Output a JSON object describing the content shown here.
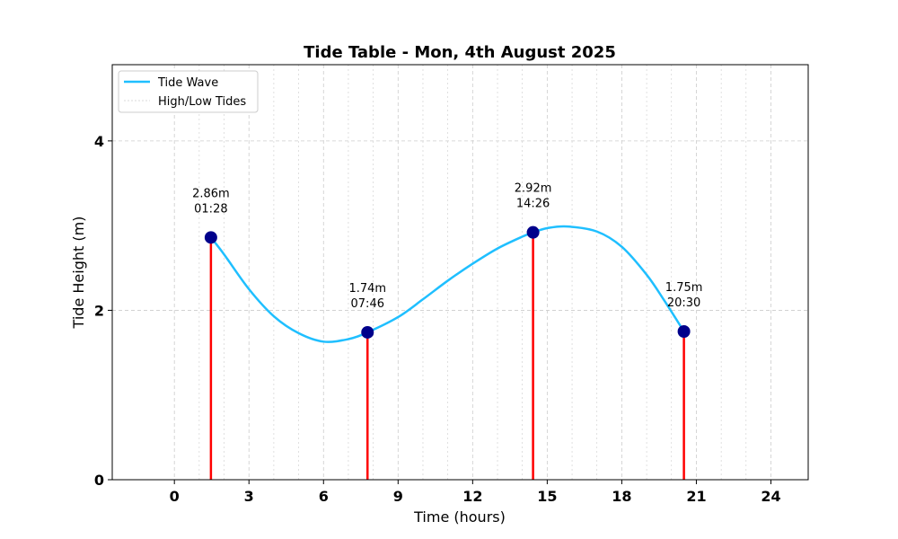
{
  "chart_data": {
    "type": "line",
    "title": "Tide Table - Mon, 4th August 2025",
    "xlabel": "Time (hours)",
    "ylabel": "Tide Height (m)",
    "xlim": [
      -2.5,
      25.5
    ],
    "ylim": [
      0,
      4.9
    ],
    "x_ticks": [
      0,
      3,
      6,
      9,
      12,
      15,
      18,
      21,
      24
    ],
    "y_ticks": [
      0,
      2,
      4
    ],
    "grid": true,
    "legend_position": "top-left",
    "legend": [
      "Tide Wave",
      "High/Low Tides"
    ],
    "colors": {
      "wave": "#1fbfff",
      "markers": "#00008b",
      "tide_lines": "#ff0000",
      "grid": "#cccccc"
    },
    "series": [
      {
        "name": "Tide Wave",
        "x": [
          1.47,
          2.0,
          3.0,
          4.0,
          5.0,
          6.0,
          7.0,
          7.77,
          9.0,
          10.0,
          11.0,
          12.0,
          13.0,
          14.0,
          14.43,
          15.0,
          15.8,
          17.0,
          18.0,
          19.0,
          19.7,
          20.5
        ],
        "y": [
          2.86,
          2.66,
          2.25,
          1.93,
          1.73,
          1.63,
          1.66,
          1.74,
          1.92,
          2.13,
          2.35,
          2.55,
          2.73,
          2.87,
          2.92,
          2.97,
          2.99,
          2.93,
          2.75,
          2.42,
          2.12,
          1.75
        ]
      }
    ],
    "tides": [
      {
        "x": 1.47,
        "y": 2.86,
        "height_label": "2.86m",
        "time_label": "01:28"
      },
      {
        "x": 7.77,
        "y": 1.74,
        "height_label": "1.74m",
        "time_label": "07:46"
      },
      {
        "x": 14.43,
        "y": 2.92,
        "height_label": "2.92m",
        "time_label": "14:26"
      },
      {
        "x": 20.5,
        "y": 1.75,
        "height_label": "1.75m",
        "time_label": "20:30"
      }
    ]
  }
}
